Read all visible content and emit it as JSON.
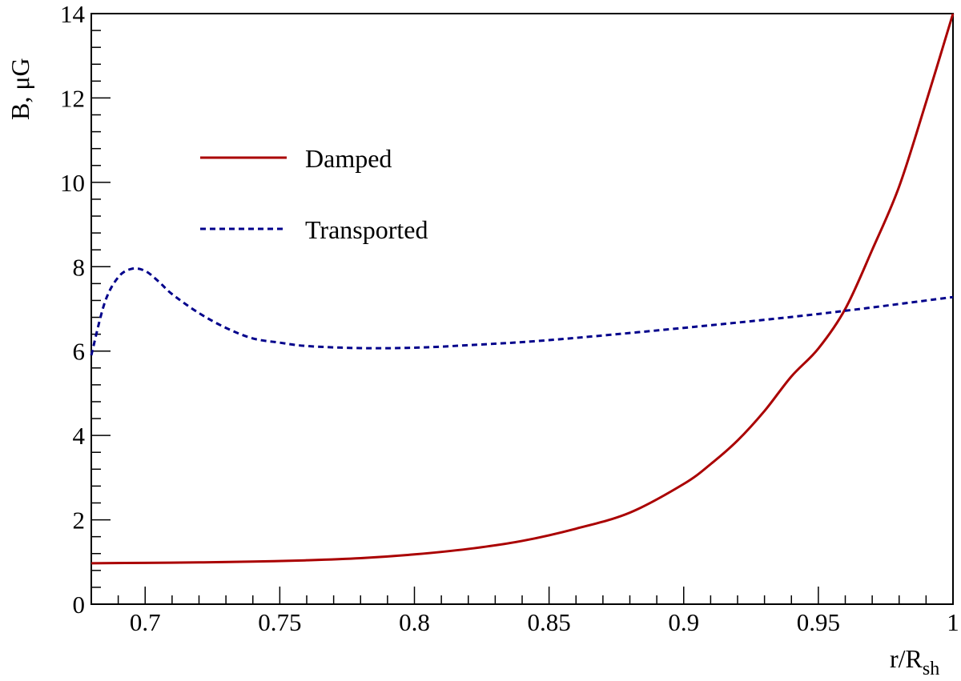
{
  "chart_data": {
    "type": "line",
    "title": "",
    "xlabel": "r/R",
    "xlabel_sub": "sh",
    "ylabel": "B, μG",
    "xlim": [
      0.68,
      1.0
    ],
    "ylim": [
      0,
      14
    ],
    "x_major_ticks": [
      0.7,
      0.75,
      0.8,
      0.85,
      0.9,
      0.95,
      1.0
    ],
    "x_tick_labels": [
      "0.7",
      "0.75",
      "0.8",
      "0.85",
      "0.9",
      "0.95",
      "1"
    ],
    "y_major_ticks": [
      0,
      2,
      4,
      6,
      8,
      10,
      12,
      14
    ],
    "y_tick_labels": [
      "0",
      "2",
      "4",
      "6",
      "8",
      "10",
      "12",
      "14"
    ],
    "grid": false,
    "legend_position": "upper-left",
    "series": [
      {
        "name": "Damped",
        "color": "#aa0000",
        "style": "solid",
        "x": [
          0.68,
          0.7,
          0.72,
          0.74,
          0.76,
          0.78,
          0.8,
          0.82,
          0.84,
          0.86,
          0.88,
          0.9,
          0.91,
          0.92,
          0.93,
          0.94,
          0.95,
          0.96,
          0.97,
          0.98,
          0.99,
          1.0
        ],
        "y": [
          0.97,
          0.98,
          0.99,
          1.01,
          1.04,
          1.09,
          1.18,
          1.31,
          1.5,
          1.79,
          2.17,
          2.85,
          3.32,
          3.88,
          4.58,
          5.4,
          6.06,
          7.0,
          8.4,
          9.9,
          11.9,
          14.0
        ]
      },
      {
        "name": "Transported",
        "color": "#00008b",
        "style": "dashed",
        "x": [
          0.68,
          0.685,
          0.69,
          0.695,
          0.7,
          0.705,
          0.71,
          0.72,
          0.73,
          0.74,
          0.75,
          0.76,
          0.78,
          0.8,
          0.82,
          0.85,
          0.9,
          0.95,
          1.0
        ],
        "y": [
          5.9,
          7.15,
          7.75,
          7.95,
          7.9,
          7.65,
          7.35,
          6.9,
          6.55,
          6.3,
          6.2,
          6.12,
          6.07,
          6.08,
          6.14,
          6.26,
          6.55,
          6.88,
          7.28
        ]
      }
    ]
  }
}
